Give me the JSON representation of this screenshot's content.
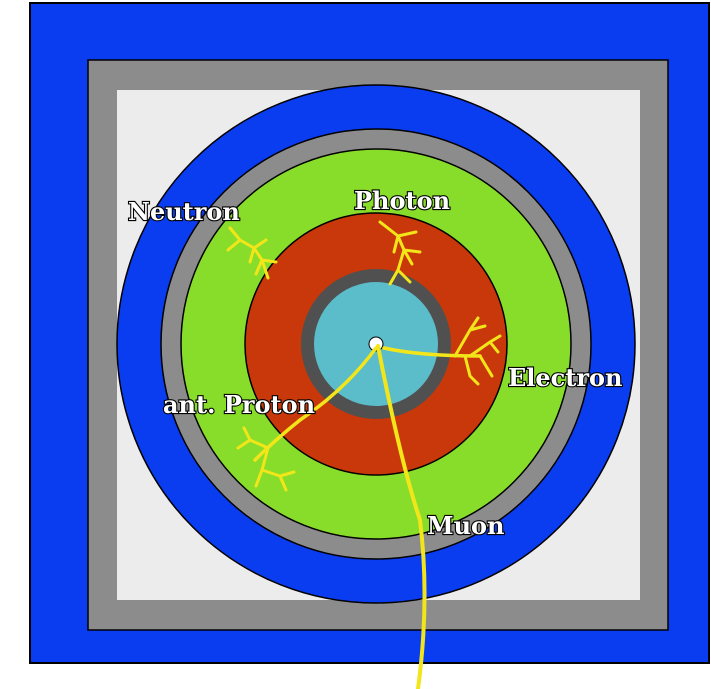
{
  "colors": {
    "outer_frame": "#0a3cf0",
    "gray_frame": "#8c8c8c",
    "inner_background": "#ececec",
    "muon_ring": "#0a3cf0",
    "solenoid_ring": "#8c8c8c",
    "hadron_calorimeter": "#88dd2a",
    "em_calorimeter": "#c8380a",
    "tracker_ring": "#505050",
    "inner_tracker": "#5bbcca",
    "interaction_point": "#ffffff",
    "track": "#f2e61a"
  },
  "labels": {
    "neutron": "Neutron",
    "photon": "Photon",
    "electron": "Electron",
    "charged_hadron": "ant. Proton",
    "muon": "Muon"
  }
}
